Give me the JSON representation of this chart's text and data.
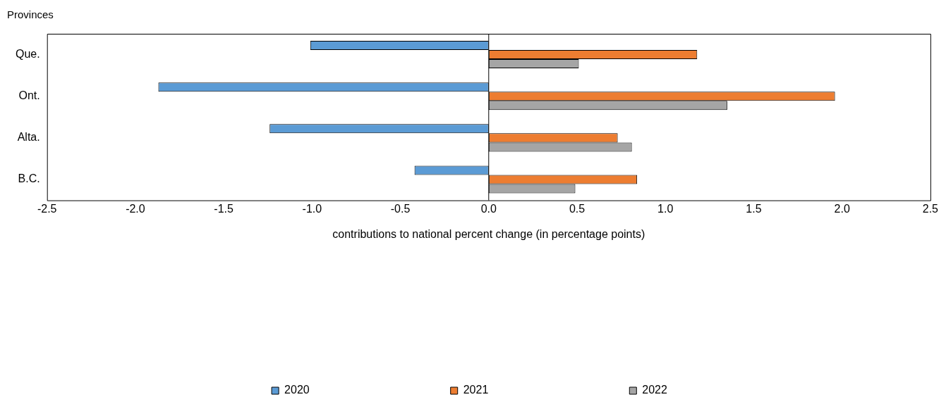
{
  "chart_data": {
    "type": "bar",
    "orientation": "horizontal",
    "ylabel": "Provinces",
    "xlabel": "contributions to national percent change (in percentage points)",
    "categories": [
      "Que.",
      "Ont.",
      "Alta.",
      "B.C."
    ],
    "series": [
      {
        "name": "2020",
        "color": "#5b9bd5",
        "values": [
          -1.01,
          -1.87,
          -1.24,
          -0.42
        ]
      },
      {
        "name": "2021",
        "color": "#ed7d31",
        "values": [
          1.18,
          1.96,
          0.73,
          0.84
        ]
      },
      {
        "name": "2022",
        "color": "#a5a5a5",
        "values": [
          0.51,
          1.35,
          0.81,
          0.49
        ]
      }
    ],
    "xlim": [
      -2.5,
      2.5
    ],
    "xticks": [
      {
        "value": -2.5,
        "label": "-2.5"
      },
      {
        "value": -2,
        "label": "-2.0"
      },
      {
        "value": -1.5,
        "label": "-1.5"
      },
      {
        "value": -1,
        "label": "-1.0"
      },
      {
        "value": -0.5,
        "label": "-0.5"
      },
      {
        "value": 0,
        "label": "0.0"
      },
      {
        "value": 0.5,
        "label": "0.5"
      },
      {
        "value": 1,
        "label": "1.0"
      },
      {
        "value": 1.5,
        "label": "1.5"
      },
      {
        "value": 2,
        "label": "2.0"
      },
      {
        "value": 2.5,
        "label": "2.5"
      }
    ],
    "ref_lines": [
      {
        "axis": "x",
        "value": 0,
        "color": "#000000"
      }
    ],
    "legend": "bottom",
    "grid": false
  }
}
